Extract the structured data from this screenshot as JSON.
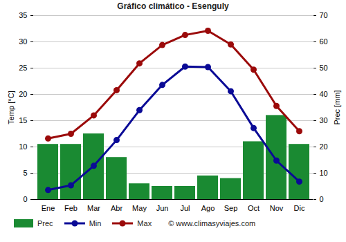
{
  "chart_data": {
    "type": "bar",
    "title": "Gráfico climático - Esenguly",
    "ylabel": "Temp [°C]",
    "y2label": "Prec [mm]",
    "source": "© www.climasyviajes.com",
    "categories": [
      "Ene",
      "Feb",
      "Mar",
      "Abr",
      "May",
      "Jun",
      "Jul",
      "Ago",
      "Sep",
      "Oct",
      "Nov",
      "Dic"
    ],
    "series": [
      {
        "name": "Prec",
        "type": "bar",
        "axis": "y2",
        "color": "#1a8a32",
        "values": [
          21,
          21,
          25,
          16,
          6,
          5,
          5,
          9,
          8,
          22,
          32,
          21
        ]
      },
      {
        "name": "Min",
        "type": "line",
        "marker": "circle",
        "color": "#0a0a96",
        "values": [
          1.8,
          2.7,
          6.4,
          11.3,
          17,
          21.8,
          25.3,
          25.2,
          20.6,
          13.6,
          7.4,
          3.4
        ]
      },
      {
        "name": "Max",
        "type": "line",
        "marker": "circle",
        "color": "#9b0a0a",
        "values": [
          11.6,
          12.5,
          16,
          20.8,
          25.9,
          29.4,
          31.3,
          32.1,
          29.5,
          24.7,
          17.8,
          13
        ]
      }
    ],
    "ylim": [
      0,
      35
    ],
    "yticks": [
      0,
      5,
      10,
      15,
      20,
      25,
      30,
      35
    ],
    "y2lim": [
      0,
      70
    ],
    "y2ticks": [
      0,
      10,
      20,
      30,
      40,
      50,
      60,
      70
    ],
    "grid": true,
    "legend": "bottom"
  }
}
